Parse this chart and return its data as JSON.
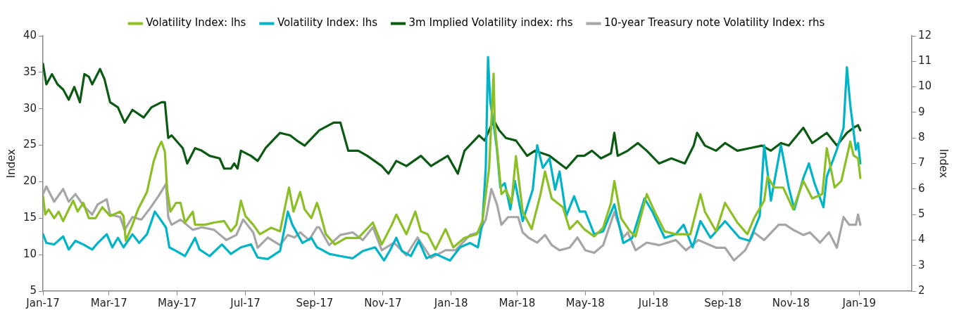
{
  "chart_data": {
    "type": "line",
    "ylabel": "Index",
    "y2label": "Index",
    "legend": "top",
    "grid": false,
    "marker": "none",
    "line_style": "solid",
    "xlim": [
      "2017-01-01",
      "2019-02-17"
    ],
    "xticks": [
      {
        "value": "2017-01-01",
        "label": "Jan-17"
      },
      {
        "value": "2017-03-01",
        "label": "Mar-17"
      },
      {
        "value": "2017-05-01",
        "label": "May-17"
      },
      {
        "value": "2017-07-01",
        "label": "Jul-17"
      },
      {
        "value": "2017-09-01",
        "label": "Sep-17"
      },
      {
        "value": "2017-11-01",
        "label": "Nov-17"
      },
      {
        "value": "2018-01-01",
        "label": "Jan-18"
      },
      {
        "value": "2018-03-01",
        "label": "Mar-18"
      },
      {
        "value": "2018-05-01",
        "label": "May-18"
      },
      {
        "value": "2018-07-01",
        "label": "Jul-18"
      },
      {
        "value": "2018-09-01",
        "label": "Sep-18"
      },
      {
        "value": "2018-11-01",
        "label": "Nov-18"
      },
      {
        "value": "2019-01-01",
        "label": "Jan-19"
      }
    ],
    "ylim": [
      5,
      40
    ],
    "yticks": [
      5,
      10,
      15,
      20,
      25,
      30,
      35,
      40
    ],
    "y2lim": [
      2,
      12
    ],
    "y2ticks": [
      2,
      3,
      4,
      5,
      6,
      7,
      8,
      9,
      10,
      11,
      12
    ],
    "series": [
      {
        "name": "Volatility Index: lhs",
        "color": "#8cbf26",
        "x": [
          "2017-01-01",
          "2017-01-03",
          "2017-01-06",
          "2017-01-11",
          "2017-01-15",
          "2017-01-19",
          "2017-01-24",
          "2017-01-28",
          "2017-02-01",
          "2017-02-06",
          "2017-02-11",
          "2017-02-17",
          "2017-02-23",
          "2017-03-02",
          "2017-03-11",
          "2017-03-14",
          "2017-03-16",
          "2017-03-22",
          "2017-03-27",
          "2017-04-04",
          "2017-04-10",
          "2017-04-14",
          "2017-04-17",
          "2017-04-20",
          "2017-04-22",
          "2017-04-25",
          "2017-04-30",
          "2017-05-04",
          "2017-05-08",
          "2017-05-15",
          "2017-05-17",
          "2017-05-26",
          "2017-06-03",
          "2017-06-12",
          "2017-06-18",
          "2017-06-23",
          "2017-06-27",
          "2017-07-01",
          "2017-07-08",
          "2017-07-14",
          "2017-07-24",
          "2017-08-01",
          "2017-08-09",
          "2017-08-13",
          "2017-08-19",
          "2017-08-23",
          "2017-08-29",
          "2017-09-03",
          "2017-09-05",
          "2017-09-11",
          "2017-09-19",
          "2017-09-29",
          "2017-10-10",
          "2017-10-23",
          "2017-10-31",
          "2017-11-09",
          "2017-11-13",
          "2017-11-22",
          "2017-11-30",
          "2017-12-05",
          "2017-12-11",
          "2017-12-18",
          "2017-12-27",
          "2018-01-03",
          "2018-01-13",
          "2018-01-24",
          "2018-01-29",
          "2018-02-04",
          "2018-02-08",
          "2018-02-09",
          "2018-02-15",
          "2018-02-19",
          "2018-02-24",
          "2018-02-28",
          "2018-03-06",
          "2018-03-14",
          "2018-03-22",
          "2018-03-26",
          "2018-04-01",
          "2018-04-11",
          "2018-04-17",
          "2018-04-24",
          "2018-04-30",
          "2018-05-09",
          "2018-05-17",
          "2018-05-24",
          "2018-05-27",
          "2018-06-02",
          "2018-06-10",
          "2018-06-15",
          "2018-06-25",
          "2018-07-02",
          "2018-07-11",
          "2018-07-21",
          "2018-08-03",
          "2018-08-12",
          "2018-08-16",
          "2018-08-26",
          "2018-09-03",
          "2018-09-14",
          "2018-09-23",
          "2018-09-29",
          "2018-10-08",
          "2018-10-11",
          "2018-10-17",
          "2018-10-25",
          "2018-11-03",
          "2018-11-12",
          "2018-11-20",
          "2018-11-29",
          "2018-12-03",
          "2018-12-10",
          "2018-12-16",
          "2018-12-24",
          "2018-12-27",
          "2018-12-31",
          "2019-01-02"
        ],
        "values": [
          18.0,
          15.5,
          16.2,
          15.0,
          15.9,
          14.6,
          16.2,
          17.4,
          15.9,
          17.1,
          15.0,
          15.0,
          16.5,
          15.3,
          15.9,
          15.3,
          11.9,
          14.1,
          16.2,
          18.6,
          22.8,
          24.6,
          25.5,
          24.1,
          18.9,
          15.9,
          17.1,
          17.1,
          14.4,
          15.9,
          14.1,
          14.1,
          14.4,
          14.6,
          13.2,
          14.1,
          17.4,
          15.3,
          14.1,
          12.8,
          13.7,
          13.2,
          19.2,
          15.9,
          18.6,
          16.2,
          15.0,
          17.1,
          16.2,
          12.8,
          11.4,
          12.3,
          12.3,
          14.4,
          11.4,
          14.1,
          15.5,
          12.8,
          15.9,
          13.2,
          12.8,
          10.7,
          13.5,
          11.0,
          12.3,
          12.8,
          14.6,
          21.9,
          34.8,
          28.0,
          18.3,
          18.9,
          17.1,
          23.5,
          15.9,
          13.5,
          18.3,
          21.4,
          17.7,
          16.5,
          13.5,
          14.6,
          13.5,
          12.5,
          13.7,
          17.1,
          20.1,
          15.0,
          13.2,
          12.5,
          18.3,
          15.9,
          13.2,
          12.8,
          12.8,
          18.3,
          15.9,
          13.2,
          17.1,
          14.4,
          12.8,
          15.0,
          17.4,
          20.7,
          19.2,
          19.2,
          16.2,
          20.1,
          17.7,
          18.3,
          24.6,
          19.2,
          20.1,
          25.5,
          23.6,
          23.2,
          20.5
        ]
      },
      {
        "name": "Volatility Index: lhs",
        "color": "#00b4c8",
        "x": [
          "2017-01-01",
          "2017-01-04",
          "2017-01-11",
          "2017-01-19",
          "2017-01-24",
          "2017-01-30",
          "2017-02-06",
          "2017-02-14",
          "2017-02-19",
          "2017-02-27",
          "2017-03-04",
          "2017-03-09",
          "2017-03-14",
          "2017-03-22",
          "2017-03-28",
          "2017-04-04",
          "2017-04-11",
          "2017-04-17",
          "2017-04-21",
          "2017-04-24",
          "2017-04-30",
          "2017-05-08",
          "2017-05-17",
          "2017-05-21",
          "2017-05-30",
          "2017-06-10",
          "2017-06-18",
          "2017-06-27",
          "2017-07-06",
          "2017-07-12",
          "2017-07-21",
          "2017-08-01",
          "2017-08-08",
          "2017-08-12",
          "2017-08-21",
          "2017-08-29",
          "2017-09-03",
          "2017-09-07",
          "2017-09-14",
          "2017-09-24",
          "2017-10-05",
          "2017-10-14",
          "2017-10-25",
          "2017-11-02",
          "2017-11-07",
          "2017-11-13",
          "2017-11-18",
          "2017-11-26",
          "2017-12-03",
          "2017-12-10",
          "2017-12-18",
          "2017-12-31",
          "2018-01-09",
          "2018-01-18",
          "2018-01-25",
          "2018-01-29",
          "2018-02-01",
          "2018-02-03",
          "2018-02-05",
          "2018-02-08",
          "2018-02-11",
          "2018-02-14",
          "2018-02-18",
          "2018-02-23",
          "2018-02-27",
          "2018-03-06",
          "2018-03-15",
          "2018-03-19",
          "2018-03-24",
          "2018-03-30",
          "2018-04-04",
          "2018-04-08",
          "2018-04-14",
          "2018-04-21",
          "2018-04-26",
          "2018-05-01",
          "2018-05-09",
          "2018-05-17",
          "2018-05-27",
          "2018-06-04",
          "2018-06-12",
          "2018-06-23",
          "2018-06-30",
          "2018-07-11",
          "2018-07-21",
          "2018-07-28",
          "2018-08-05",
          "2018-08-12",
          "2018-08-21",
          "2018-09-03",
          "2018-09-16",
          "2018-09-25",
          "2018-10-04",
          "2018-10-08",
          "2018-10-12",
          "2018-10-14",
          "2018-10-23",
          "2018-10-30",
          "2018-11-04",
          "2018-11-12",
          "2018-11-17",
          "2018-11-22",
          "2018-11-30",
          "2018-12-03",
          "2018-12-12",
          "2018-12-18",
          "2018-12-21",
          "2018-12-24",
          "2018-12-29",
          "2018-12-31",
          "2019-01-02"
        ],
        "values": [
          12.8,
          11.6,
          11.4,
          12.5,
          10.7,
          11.9,
          11.4,
          10.7,
          11.6,
          12.8,
          11.0,
          12.3,
          11.0,
          12.8,
          11.6,
          12.8,
          15.9,
          14.6,
          13.7,
          11.0,
          10.5,
          9.8,
          12.3,
          10.7,
          9.8,
          11.4,
          10.1,
          11.0,
          11.4,
          9.6,
          9.4,
          10.5,
          15.9,
          14.1,
          11.6,
          12.3,
          11.0,
          10.7,
          10.1,
          9.8,
          9.5,
          10.5,
          11.0,
          9.2,
          10.5,
          12.3,
          10.5,
          9.8,
          11.9,
          9.5,
          10.1,
          9.2,
          11.0,
          11.6,
          11.0,
          14.4,
          21.9,
          37.1,
          31.0,
          28.0,
          24.4,
          19.2,
          19.8,
          16.2,
          20.1,
          14.6,
          18.9,
          25.0,
          21.9,
          23.2,
          18.9,
          21.4,
          15.3,
          18.0,
          15.9,
          15.9,
          12.8,
          13.2,
          16.9,
          11.6,
          12.3,
          17.7,
          15.9,
          12.3,
          12.8,
          14.1,
          11.0,
          14.6,
          12.3,
          14.6,
          12.3,
          11.9,
          15.3,
          25.0,
          20.1,
          17.4,
          25.0,
          19.2,
          16.2,
          20.5,
          22.5,
          19.8,
          16.5,
          20.7,
          24.4,
          27.4,
          35.7,
          30.5,
          24.4,
          25.3,
          22.5
        ]
      },
      {
        "name": "3m Implied Volatility index: rhs",
        "color": "#0b5a14",
        "axis": "y2",
        "x": [
          "2017-01-01",
          "2017-01-04",
          "2017-01-09",
          "2017-01-14",
          "2017-01-19",
          "2017-01-24",
          "2017-01-29",
          "2017-02-03",
          "2017-02-07",
          "2017-02-11",
          "2017-02-14",
          "2017-02-21",
          "2017-02-25",
          "2017-03-02",
          "2017-03-09",
          "2017-03-15",
          "2017-03-22",
          "2017-04-01",
          "2017-04-08",
          "2017-04-17",
          "2017-04-20",
          "2017-04-23",
          "2017-04-26",
          "2017-05-06",
          "2017-05-10",
          "2017-05-17",
          "2017-05-23",
          "2017-05-30",
          "2017-06-08",
          "2017-06-12",
          "2017-06-18",
          "2017-06-21",
          "2017-06-24",
          "2017-06-27",
          "2017-07-06",
          "2017-07-12",
          "2017-07-19",
          "2017-08-01",
          "2017-08-10",
          "2017-08-16",
          "2017-08-23",
          "2017-09-03",
          "2017-09-05",
          "2017-09-18",
          "2017-09-24",
          "2017-10-01",
          "2017-10-10",
          "2017-10-18",
          "2017-10-31",
          "2017-11-06",
          "2017-11-13",
          "2017-11-22",
          "2017-12-05",
          "2017-12-14",
          "2017-12-29",
          "2018-01-07",
          "2018-01-13",
          "2018-01-26",
          "2018-01-31",
          "2018-02-08",
          "2018-02-13",
          "2018-02-19",
          "2018-02-28",
          "2018-03-10",
          "2018-03-17",
          "2018-03-30",
          "2018-04-14",
          "2018-04-24",
          "2018-04-30",
          "2018-05-07",
          "2018-05-15",
          "2018-05-24",
          "2018-05-27",
          "2018-05-30",
          "2018-06-08",
          "2018-06-17",
          "2018-06-25",
          "2018-07-06",
          "2018-07-17",
          "2018-07-29",
          "2018-08-06",
          "2018-08-09",
          "2018-08-16",
          "2018-08-26",
          "2018-09-03",
          "2018-09-14",
          "2018-09-25",
          "2018-10-06",
          "2018-10-14",
          "2018-10-23",
          "2018-10-30",
          "2018-11-12",
          "2018-11-20",
          "2018-12-03",
          "2018-12-12",
          "2018-12-21",
          "2018-12-27",
          "2018-12-31",
          "2019-01-02"
        ],
        "values": [
          10.9,
          10.1,
          10.5,
          10.1,
          9.9,
          9.5,
          10.0,
          9.4,
          10.5,
          10.4,
          10.1,
          10.7,
          10.3,
          9.4,
          9.2,
          8.6,
          9.1,
          8.8,
          9.2,
          9.4,
          9.4,
          8.0,
          8.1,
          7.6,
          7.0,
          7.6,
          7.5,
          7.3,
          7.2,
          6.8,
          6.8,
          7.0,
          6.8,
          7.5,
          7.3,
          7.1,
          7.6,
          8.2,
          8.1,
          7.9,
          7.7,
          8.2,
          8.3,
          8.6,
          8.6,
          7.5,
          7.5,
          7.3,
          6.9,
          6.6,
          7.1,
          6.9,
          7.3,
          6.9,
          7.3,
          6.6,
          7.5,
          8.1,
          7.9,
          8.7,
          8.3,
          8.0,
          7.9,
          7.3,
          7.5,
          7.3,
          6.8,
          7.3,
          7.3,
          7.5,
          7.2,
          7.4,
          8.2,
          7.3,
          7.5,
          7.8,
          7.5,
          7.0,
          7.2,
          7.0,
          7.7,
          8.2,
          7.7,
          7.5,
          7.8,
          7.5,
          7.6,
          7.7,
          7.5,
          7.8,
          7.7,
          8.4,
          7.8,
          8.2,
          7.7,
          8.2,
          8.4,
          8.5,
          8.3
        ]
      },
      {
        "name": "10-year Treasury note Volatility Index: rhs",
        "color": "#a6a6a6",
        "axis": "y2",
        "x": [
          "2017-01-01",
          "2017-01-04",
          "2017-01-11",
          "2017-01-19",
          "2017-01-24",
          "2017-01-30",
          "2017-02-07",
          "2017-02-14",
          "2017-02-19",
          "2017-02-27",
          "2017-03-02",
          "2017-03-11",
          "2017-03-15",
          "2017-03-22",
          "2017-03-30",
          "2017-04-06",
          "2017-04-14",
          "2017-04-21",
          "2017-04-23",
          "2017-04-26",
          "2017-05-04",
          "2017-05-15",
          "2017-05-23",
          "2017-06-03",
          "2017-06-14",
          "2017-06-23",
          "2017-06-29",
          "2017-07-08",
          "2017-07-12",
          "2017-07-21",
          "2017-08-01",
          "2017-08-08",
          "2017-08-14",
          "2017-08-19",
          "2017-08-27",
          "2017-09-03",
          "2017-09-05",
          "2017-09-14",
          "2017-09-24",
          "2017-10-05",
          "2017-10-14",
          "2017-10-23",
          "2017-10-31",
          "2017-11-11",
          "2017-11-22",
          "2017-12-02",
          "2017-12-14",
          "2017-12-27",
          "2018-01-05",
          "2018-01-18",
          "2018-01-26",
          "2018-02-01",
          "2018-02-06",
          "2018-02-11",
          "2018-02-15",
          "2018-02-21",
          "2018-03-02",
          "2018-03-06",
          "2018-03-11",
          "2018-03-19",
          "2018-03-26",
          "2018-04-01",
          "2018-04-08",
          "2018-04-17",
          "2018-04-24",
          "2018-05-01",
          "2018-05-09",
          "2018-05-17",
          "2018-05-27",
          "2018-06-04",
          "2018-06-08",
          "2018-06-15",
          "2018-06-25",
          "2018-07-06",
          "2018-07-21",
          "2018-07-30",
          "2018-08-10",
          "2018-08-26",
          "2018-09-03",
          "2018-09-11",
          "2018-09-21",
          "2018-09-29",
          "2018-10-08",
          "2018-10-21",
          "2018-10-27",
          "2018-11-03",
          "2018-11-12",
          "2018-11-18",
          "2018-11-27",
          "2018-12-05",
          "2018-12-12",
          "2018-12-18",
          "2018-12-23",
          "2018-12-29",
          "2018-12-31",
          "2019-01-02"
        ],
        "values": [
          5.8,
          6.1,
          5.5,
          6.0,
          5.5,
          5.8,
          5.3,
          5.0,
          5.4,
          5.6,
          5.0,
          4.9,
          4.4,
          4.9,
          4.8,
          5.2,
          5.7,
          6.2,
          4.9,
          4.6,
          4.8,
          4.4,
          4.5,
          4.4,
          4.0,
          4.2,
          4.8,
          4.3,
          3.7,
          4.1,
          3.8,
          4.2,
          4.1,
          4.3,
          4.0,
          4.5,
          4.5,
          3.8,
          4.2,
          4.3,
          4.0,
          4.5,
          3.6,
          3.9,
          3.4,
          4.1,
          3.3,
          3.6,
          3.6,
          4.2,
          4.3,
          4.8,
          6.0,
          5.4,
          4.6,
          4.9,
          4.9,
          4.3,
          4.1,
          3.9,
          4.2,
          3.8,
          3.6,
          3.7,
          4.1,
          3.6,
          3.5,
          3.8,
          5.1,
          4.1,
          4.3,
          3.6,
          3.9,
          3.8,
          4.0,
          3.6,
          4.0,
          3.7,
          3.7,
          3.2,
          3.6,
          4.3,
          4.0,
          4.6,
          4.6,
          4.4,
          4.2,
          4.3,
          3.9,
          4.3,
          3.7,
          4.9,
          4.6,
          4.6,
          5.0,
          4.6
        ]
      }
    ]
  }
}
